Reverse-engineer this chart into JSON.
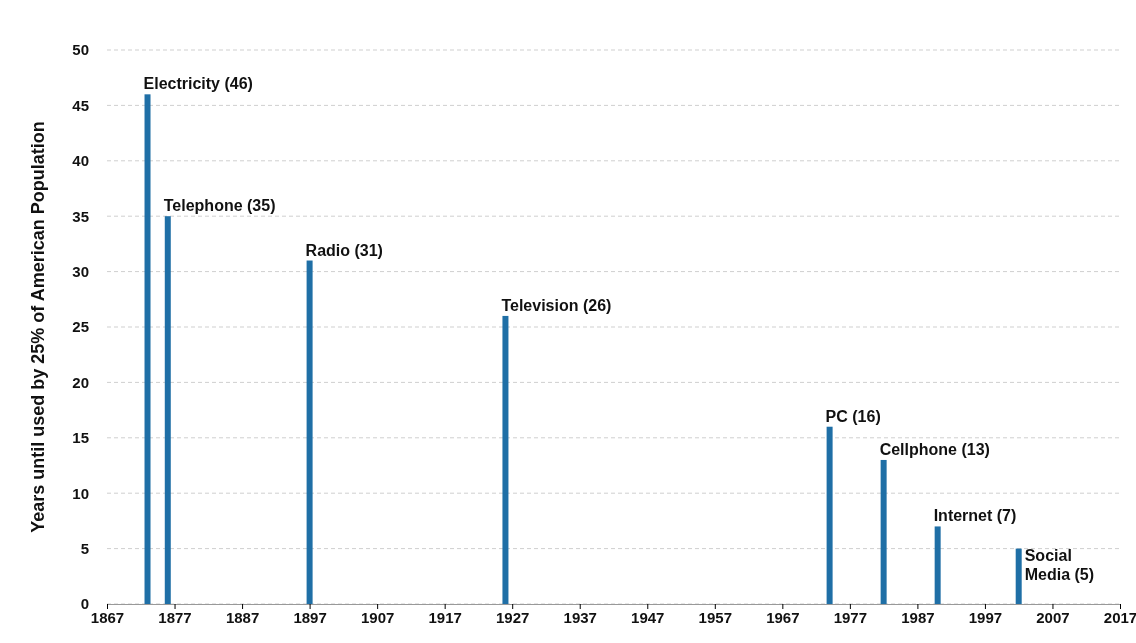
{
  "chart_data": {
    "type": "bar",
    "ylabel": "Years until used by 25% of American Population",
    "x": [
      1873,
      1876,
      1897,
      1926,
      1974,
      1982,
      1990,
      2002
    ],
    "values": [
      46,
      35,
      31,
      26,
      16,
      13,
      7,
      5
    ],
    "annotations": [
      {
        "text": "Electricity (46)",
        "x": 1873,
        "y": 46
      },
      {
        "text": "Telephone (35)",
        "x": 1876,
        "y": 35
      },
      {
        "text": "Radio (31)",
        "x": 1897,
        "y": 31
      },
      {
        "text": "Television (26)",
        "x": 1926,
        "y": 26
      },
      {
        "text": "PC (16)",
        "x": 1974,
        "y": 16
      },
      {
        "text": "Cellphone (13)",
        "x": 1982,
        "y": 13
      },
      {
        "text": "Internet (7)",
        "x": 1990,
        "y": 7
      },
      {
        "text": "Social Media (5)",
        "x": 2002,
        "y": 5
      }
    ],
    "color": "#1f6fa6",
    "xlim": [
      1867,
      2017
    ],
    "xticks": [
      1867,
      1877,
      1887,
      1897,
      1907,
      1917,
      1927,
      1937,
      1947,
      1957,
      1967,
      1977,
      1987,
      1997,
      2007,
      2017
    ],
    "ylim": [
      0,
      50
    ],
    "yticks": [
      0,
      5,
      10,
      15,
      20,
      25,
      30,
      35,
      40,
      45,
      50
    ],
    "grid": "y"
  }
}
